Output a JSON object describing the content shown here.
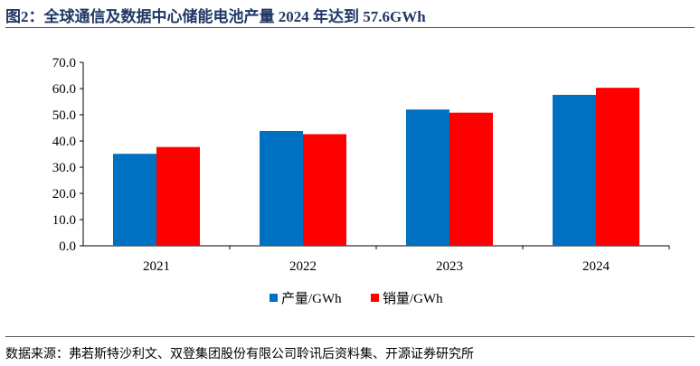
{
  "title": "图2：全球通信及数据中心储能电池产量 2024 年达到 57.6GWh",
  "source": "数据来源：弗若斯特沙利文、双登集团股份有限公司聆讯后资料集、开源证券研究所",
  "chart_data": {
    "type": "bar",
    "categories": [
      "2021",
      "2022",
      "2023",
      "2024"
    ],
    "series": [
      {
        "name": "产量/GWh",
        "color": "#0070c0",
        "values": [
          35.1,
          43.8,
          52.0,
          57.6
        ]
      },
      {
        "name": "销量/GWh",
        "color": "#ff0000",
        "values": [
          37.7,
          42.6,
          50.8,
          60.3
        ]
      }
    ],
    "yticks": [
      "0.0",
      "10.0",
      "20.0",
      "30.0",
      "40.0",
      "50.0",
      "60.0",
      "70.0"
    ],
    "ylim": [
      0,
      70
    ],
    "grid": false,
    "legend": "bottom"
  }
}
